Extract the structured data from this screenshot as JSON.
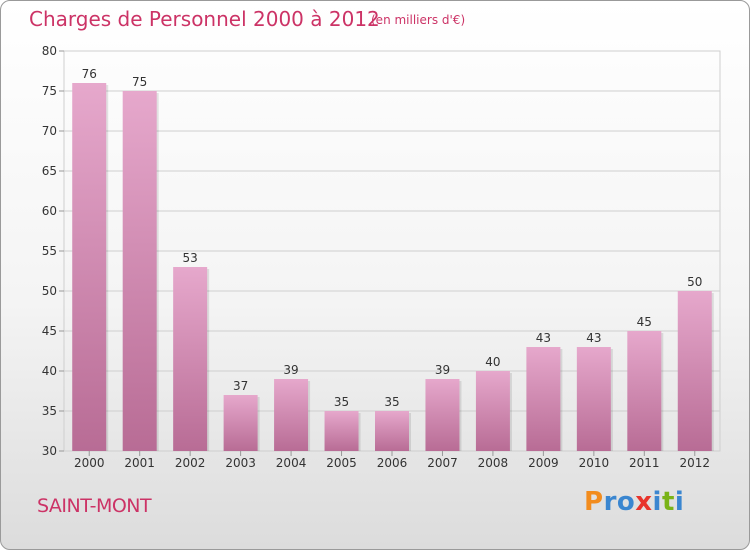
{
  "header": {
    "title": "Charges de Personnel 2000 à 2012",
    "unit": "(en milliers d'€)"
  },
  "footer": {
    "city": "SAINT-MONT",
    "logo": [
      {
        "ch": "P",
        "color": "#f28c1e"
      },
      {
        "ch": "r",
        "color": "#3a86d0"
      },
      {
        "ch": "o",
        "color": "#3a86d0"
      },
      {
        "ch": "x",
        "color": "#e8342c"
      },
      {
        "ch": "i",
        "color": "#3a86d0"
      },
      {
        "ch": "t",
        "color": "#7ab317"
      },
      {
        "ch": "i",
        "color": "#3a86d0"
      }
    ]
  },
  "chart_data": {
    "type": "bar",
    "title": "Charges de Personnel 2000 à 2012",
    "subtitle": "(en milliers d'€)",
    "categories": [
      "2000",
      "2001",
      "2002",
      "2003",
      "2004",
      "2005",
      "2006",
      "2007",
      "2008",
      "2009",
      "2010",
      "2011",
      "2012"
    ],
    "values": [
      76,
      75,
      53,
      37,
      39,
      35,
      35,
      39,
      40,
      43,
      43,
      45,
      50
    ],
    "ylim": [
      30,
      80
    ],
    "yticks": [
      30,
      35,
      40,
      45,
      50,
      55,
      60,
      65,
      70,
      75,
      80
    ],
    "grid": true,
    "colors": {
      "bar_top": "#e6a8cc",
      "bar_bottom": "#b86c95",
      "accent": "#cc3366"
    }
  }
}
